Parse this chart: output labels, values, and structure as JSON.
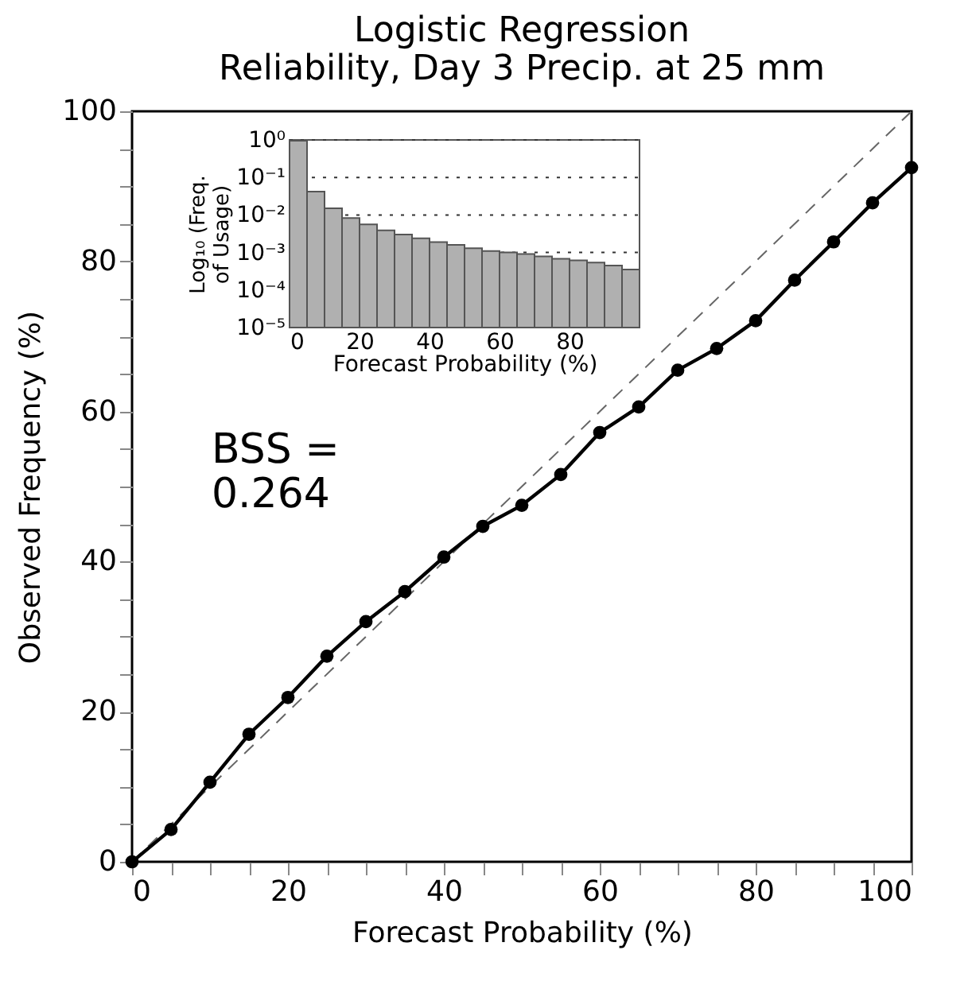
{
  "chart_data": [
    {
      "type": "line",
      "title": [
        "Logistic Regression",
        "Reliability, Day 3 Precip. at 25 mm"
      ],
      "xlabel": "Forecast Probability (%)",
      "ylabel": "Observed Frequency (%)",
      "xlim": [
        0,
        100
      ],
      "ylim": [
        0,
        100
      ],
      "xticks": [
        0,
        {
          "value": 5,
          "label": null
        },
        {
          "value": 10,
          "label": null
        },
        {
          "value": 15,
          "label": null
        },
        20,
        {
          "value": 25,
          "label": null
        },
        {
          "value": 30,
          "label": null
        },
        {
          "value": 35,
          "label": null
        },
        40,
        {
          "value": 45,
          "label": null
        },
        {
          "value": 50,
          "label": null
        },
        {
          "value": 55,
          "label": null
        },
        60,
        {
          "value": 65,
          "label": null
        },
        {
          "value": 70,
          "label": null
        },
        {
          "value": 75,
          "label": null
        },
        80,
        {
          "value": 85,
          "label": null
        },
        {
          "value": 90,
          "label": null
        },
        {
          "value": 95,
          "label": null
        },
        100
      ],
      "yticks": [
        0,
        {
          "value": 5,
          "label": null
        },
        {
          "value": 10,
          "label": null
        },
        {
          "value": 15,
          "label": null
        },
        20,
        {
          "value": 25,
          "label": null
        },
        {
          "value": 30,
          "label": null
        },
        {
          "value": 35,
          "label": null
        },
        40,
        {
          "value": 45,
          "label": null
        },
        {
          "value": 50,
          "label": null
        },
        {
          "value": 55,
          "label": null
        },
        60,
        {
          "value": 65,
          "label": null
        },
        {
          "value": 70,
          "label": null
        },
        {
          "value": 75,
          "label": null
        },
        80,
        {
          "value": 85,
          "label": null
        },
        {
          "value": 90,
          "label": null
        },
        {
          "value": 95,
          "label": null
        },
        100
      ],
      "grid": false,
      "annotations": [
        "BSS =\n0.264"
      ],
      "series": [
        {
          "type": "line",
          "color": "#666666",
          "line_style": "dashed",
          "marker": "none",
          "x": [
            0,
            100
          ],
          "values": [
            0,
            100
          ]
        },
        {
          "type": "line",
          "color": "#000000",
          "line_style": "solid",
          "marker": "circle",
          "x": [
            0,
            5,
            10,
            15,
            20,
            25,
            30,
            35,
            40,
            45,
            50,
            55,
            60,
            65,
            70,
            75,
            80,
            85,
            90,
            95,
            100
          ],
          "values": [
            0,
            4.3,
            10.6,
            17,
            21.9,
            27.4,
            32,
            36,
            40.6,
            44.7,
            47.5,
            51.6,
            57.2,
            60.6,
            65.5,
            68.4,
            72.1,
            77.5,
            82.6,
            87.8,
            92.5
          ]
        }
      ]
    },
    {
      "type": "histogram",
      "xlabel": "Forecast Probability (%)",
      "ylabel": "Log₁₀ (Freq.\nof Usage)",
      "color": "#b0b0b0",
      "log": true,
      "bins": [
        0,
        5,
        10,
        15,
        20,
        25,
        30,
        35,
        40,
        45,
        50,
        55,
        60,
        65,
        70,
        75,
        80,
        85,
        90,
        95,
        100
      ],
      "values": [
        0.95,
        0.042,
        0.015,
        0.0083,
        0.0056,
        0.0039,
        0.003,
        0.0024,
        0.0019,
        0.0016,
        0.0013,
        0.0011,
        0.001,
        0.00091,
        0.00079,
        0.00068,
        0.00062,
        0.00054,
        0.00045,
        0.00035
      ],
      "xlim": [
        0,
        100
      ],
      "xticks": [
        0,
        20,
        40,
        60,
        80
      ],
      "ylim": [
        1e-05,
        1
      ],
      "yticks": [
        {
          "value": 1,
          "label": "10⁰"
        },
        {
          "value": 0.1,
          "label": "10⁻¹"
        },
        {
          "value": 0.01,
          "label": "10⁻²"
        },
        {
          "value": 0.001,
          "label": "10⁻³"
        },
        {
          "value": 0.0001,
          "label": "10⁻⁴"
        },
        {
          "value": 1e-05,
          "label": "10⁻⁵"
        }
      ],
      "grid": "y"
    }
  ]
}
